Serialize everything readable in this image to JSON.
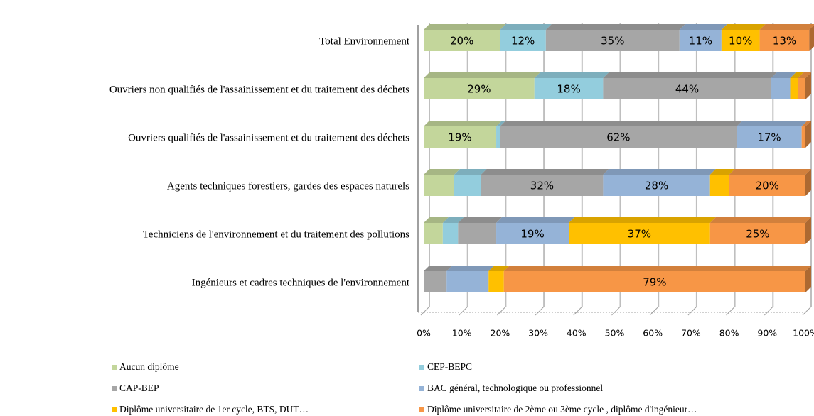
{
  "chart_data": {
    "type": "stacked-bar-horizontal",
    "categories": [
      "Total Environnement",
      "Ouvriers non qualifiés de l'assainissement et du traitement des déchets",
      "Ouvriers qualifiés de l'assainissement et du traitement des déchets",
      "Agents techniques forestiers, gardes des espaces naturels",
      "Techniciens de l'environnement et du traitement des pollutions",
      "Ingénieurs et cadres techniques de l'environnement"
    ],
    "series": [
      {
        "name": "Aucun diplôme",
        "color": "#c3d69b",
        "values": [
          20,
          29,
          19,
          8,
          5,
          0
        ],
        "value_labels": [
          "20%",
          "29%",
          "19%",
          null,
          null,
          null
        ]
      },
      {
        "name": "CEP-BEPC",
        "color": "#93cddd",
        "values": [
          12,
          18,
          1,
          7,
          4,
          0
        ],
        "value_labels": [
          "12%",
          "18%",
          null,
          null,
          null,
          null
        ]
      },
      {
        "name": "CAP-BEP",
        "color": "#a6a6a6",
        "values": [
          35,
          44,
          62,
          32,
          10,
          6
        ],
        "value_labels": [
          "35%",
          "44%",
          "62%",
          "32%",
          null,
          null
        ]
      },
      {
        "name": "BAC général, technologique ou professionnel",
        "color": "#95b3d7",
        "values": [
          11,
          5,
          17,
          28,
          19,
          11
        ],
        "value_labels": [
          "11%",
          null,
          "17%",
          "28%",
          "19%",
          null
        ]
      },
      {
        "name": "Diplôme universitaire de 1er cycle, BTS, DUT…",
        "color": "#ffc000",
        "values": [
          10,
          2,
          0,
          5,
          37,
          4
        ],
        "value_labels": [
          "10%",
          null,
          null,
          null,
          "37%",
          null
        ]
      },
      {
        "name": "Diplôme universitaire de 2ème ou 3ème cycle , diplôme d'ingénieur…",
        "color": "#f79646",
        "values": [
          13,
          2,
          1,
          20,
          25,
          79
        ],
        "value_labels": [
          "13%",
          null,
          null,
          "20%",
          "25%",
          "79%"
        ]
      }
    ],
    "xlim": [
      0,
      100
    ],
    "xticks": [
      {
        "value": 0,
        "label": "0%"
      },
      {
        "value": 10,
        "label": "10%"
      },
      {
        "value": 20,
        "label": "20%"
      },
      {
        "value": 30,
        "label": "30%"
      },
      {
        "value": 40,
        "label": "40%"
      },
      {
        "value": 50,
        "label": "50%"
      },
      {
        "value": 60,
        "label": "60%"
      },
      {
        "value": 70,
        "label": "70%"
      },
      {
        "value": 80,
        "label": "80%"
      },
      {
        "value": 90,
        "label": "90%"
      },
      {
        "value": 100,
        "label": "100%"
      }
    ],
    "grid": true,
    "legend": "bottom"
  }
}
